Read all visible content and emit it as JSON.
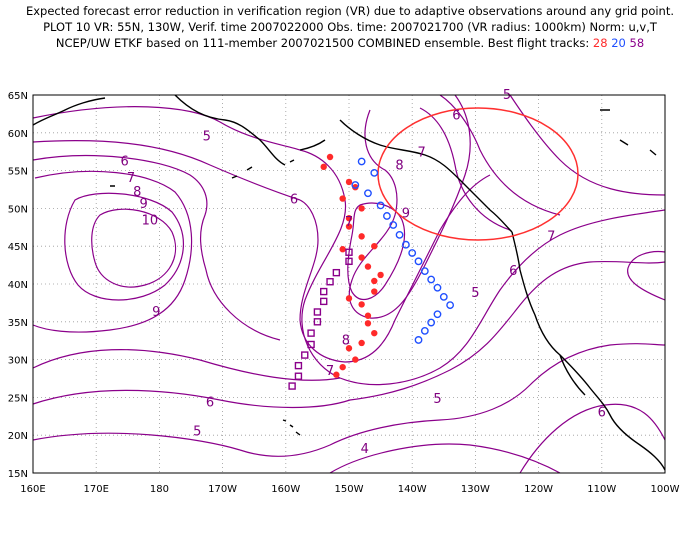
{
  "title": {
    "line1": "Expected forecast error reduction in verification region (VR) due to adaptive observations around any grid point.",
    "line2": "PLOT 10 VR: 55N, 130W, Verif. time 2007022000 Obs. time: 2007021700 (VR radius: 1000km) Norm: u,v,T",
    "line3_prefix": "NCEP/UW ETKF based on 111-member 2007021500 COMBINED ensemble.  Best flight tracks:",
    "track_red": "28",
    "track_blue": "20",
    "track_purple": "58"
  },
  "axes": {
    "lon_labels": [
      "160E",
      "170E",
      "180",
      "170W",
      "160W",
      "150W",
      "140W",
      "130W",
      "120W",
      "110W",
      "100W"
    ],
    "lat_labels": [
      "65N",
      "60N",
      "55N",
      "50N",
      "45N",
      "40N",
      "35N",
      "30N",
      "25N",
      "20N",
      "15N"
    ]
  },
  "contour_labels": [
    {
      "text": "5",
      "lon": 187.5,
      "lat": 59.5
    },
    {
      "text": "6",
      "lon": 174.5,
      "lat": 56.2
    },
    {
      "text": "7",
      "lon": 175.5,
      "lat": 54.0
    },
    {
      "text": "8",
      "lon": 176.5,
      "lat": 52.2
    },
    {
      "text": "9",
      "lon": 177.5,
      "lat": 50.6
    },
    {
      "text": "10",
      "lon": 178.5,
      "lat": 48.4
    },
    {
      "text": "9",
      "lon": 179.5,
      "lat": 36.3
    },
    {
      "text": "6",
      "lon": 201.3,
      "lat": 51.2
    },
    {
      "text": "7",
      "lon": 210.0,
      "lat": 48.2
    },
    {
      "text": "8",
      "lon": 218.0,
      "lat": 55.7
    },
    {
      "text": "9",
      "lon": 219.0,
      "lat": 49.3
    },
    {
      "text": "7",
      "lon": 221.5,
      "lat": 57.4
    },
    {
      "text": "6",
      "lon": 227.0,
      "lat": 62.3
    },
    {
      "text": "5",
      "lon": 235.0,
      "lat": 65.0
    },
    {
      "text": "8",
      "lon": 209.5,
      "lat": 32.5
    },
    {
      "text": "7",
      "lon": 207.0,
      "lat": 28.5
    },
    {
      "text": "6",
      "lon": 188.0,
      "lat": 24.3
    },
    {
      "text": "5",
      "lon": 186.0,
      "lat": 20.5
    },
    {
      "text": "5",
      "lon": 224.0,
      "lat": 24.8
    },
    {
      "text": "4",
      "lon": 212.5,
      "lat": 18.2
    },
    {
      "text": "7",
      "lon": 242.0,
      "lat": 46.3
    },
    {
      "text": "6",
      "lon": 236.0,
      "lat": 41.7
    },
    {
      "text": "5",
      "lon": 230.0,
      "lat": 38.8
    },
    {
      "text": "6",
      "lon": 250.0,
      "lat": 23.0
    }
  ]
}
